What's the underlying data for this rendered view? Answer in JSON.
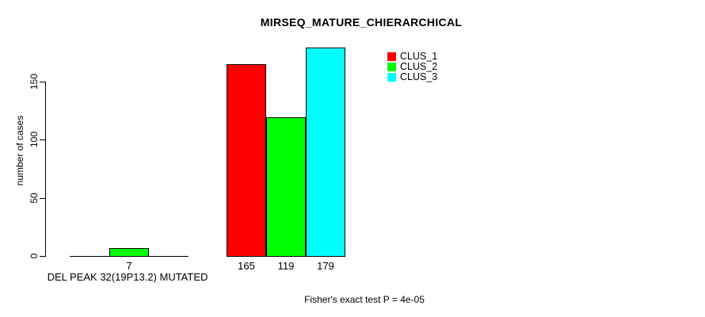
{
  "chart_data": {
    "type": "bar",
    "title": "MIRSEQ_MATURE_CHIERARCHICAL",
    "ylabel": "number of cases",
    "xlabel": "DEL PEAK 32(19P13.2) MUTATED",
    "footnote": "Fisher's exact test P = 4e-05",
    "ylim": [
      0,
      150
    ],
    "yticks": [
      0,
      50,
      100,
      150
    ],
    "grid": false,
    "legend_position": "top-right",
    "legend": [
      {
        "label": "CLUS_1",
        "color": "#ff0000"
      },
      {
        "label": "CLUS_2",
        "color": "#00ff00"
      },
      {
        "label": "CLUS_3",
        "color": "#00ffff"
      }
    ],
    "groups": [
      {
        "bars": [
          {
            "series": "CLUS_1",
            "value": 0,
            "label": ""
          },
          {
            "series": "CLUS_2",
            "value": 7,
            "label": "7"
          },
          {
            "series": "CLUS_3",
            "value": 0,
            "label": ""
          }
        ]
      },
      {
        "bars": [
          {
            "series": "CLUS_1",
            "value": 165,
            "label": "165"
          },
          {
            "series": "CLUS_2",
            "value": 119,
            "label": "119"
          },
          {
            "series": "CLUS_3",
            "value": 179,
            "label": "179"
          }
        ]
      }
    ]
  }
}
